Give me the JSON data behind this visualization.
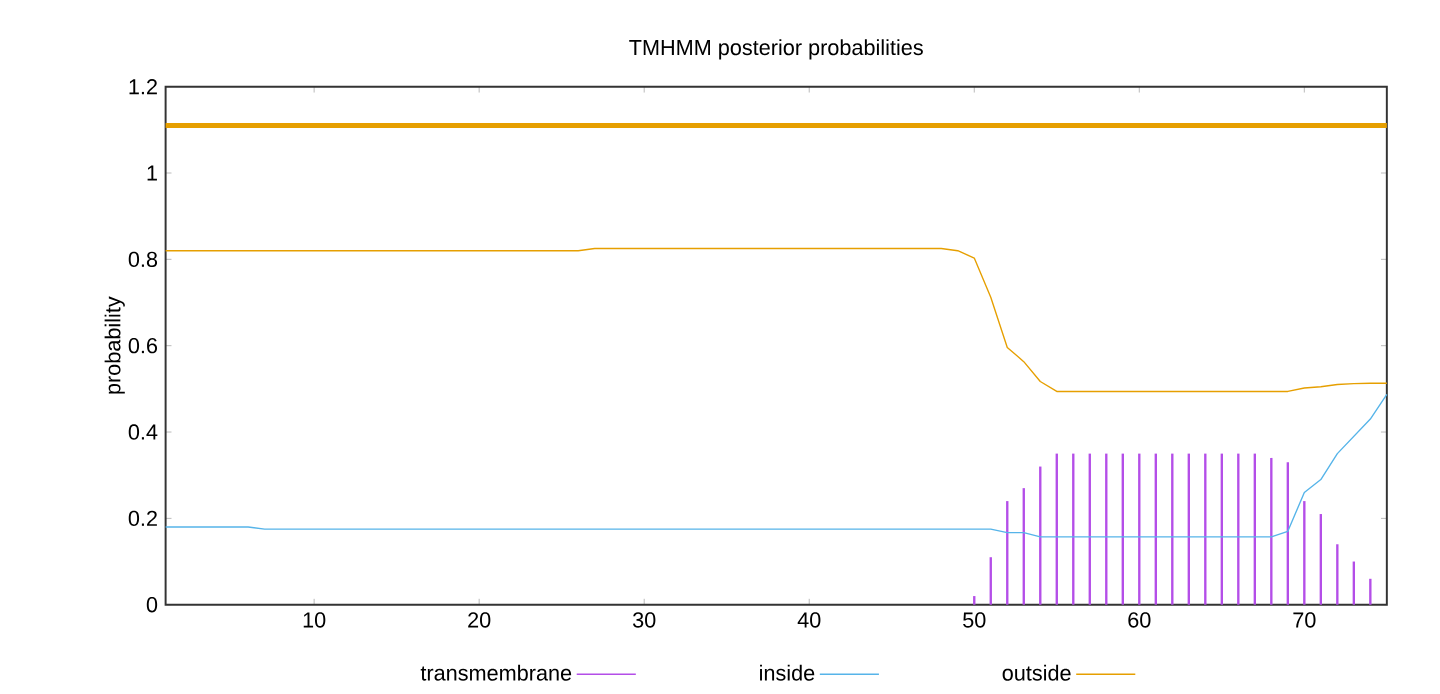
{
  "chart_data": {
    "type": "line",
    "title": "TMHMM posterior probabilities",
    "ylabel": "probability",
    "x": [
      1,
      2,
      3,
      4,
      5,
      6,
      7,
      8,
      9,
      10,
      11,
      12,
      13,
      14,
      15,
      16,
      17,
      18,
      19,
      20,
      21,
      22,
      23,
      24,
      25,
      26,
      27,
      28,
      29,
      30,
      31,
      32,
      33,
      34,
      35,
      36,
      37,
      38,
      39,
      40,
      41,
      42,
      43,
      44,
      45,
      46,
      47,
      48,
      49,
      50,
      51,
      52,
      53,
      54,
      55,
      56,
      57,
      58,
      59,
      60,
      61,
      62,
      63,
      64,
      65,
      66,
      67,
      68,
      69,
      70,
      71,
      72,
      73,
      74,
      75
    ],
    "series": [
      {
        "name": "transmembrane",
        "type": "bar",
        "color": "#b44ee8",
        "values": [
          0,
          0,
          0,
          0,
          0,
          0,
          0,
          0,
          0,
          0,
          0,
          0,
          0,
          0,
          0,
          0,
          0,
          0,
          0,
          0,
          0,
          0,
          0,
          0,
          0,
          0,
          0,
          0,
          0,
          0,
          0,
          0,
          0,
          0,
          0,
          0,
          0,
          0,
          0,
          0,
          0,
          0,
          0,
          0,
          0,
          0,
          0,
          0,
          0,
          0.02,
          0.11,
          0.24,
          0.27,
          0.32,
          0.35,
          0.35,
          0.35,
          0.35,
          0.35,
          0.35,
          0.35,
          0.35,
          0.35,
          0.35,
          0.35,
          0.35,
          0.35,
          0.34,
          0.33,
          0.24,
          0.21,
          0.14,
          0.1,
          0.06,
          0
        ]
      },
      {
        "name": "inside",
        "color": "#56b4e9",
        "values": [
          0.18,
          0.18,
          0.18,
          0.18,
          0.18,
          0.18,
          0.175,
          0.175,
          0.175,
          0.175,
          0.175,
          0.175,
          0.175,
          0.175,
          0.175,
          0.175,
          0.175,
          0.175,
          0.175,
          0.175,
          0.175,
          0.175,
          0.175,
          0.175,
          0.175,
          0.175,
          0.175,
          0.175,
          0.175,
          0.175,
          0.175,
          0.175,
          0.175,
          0.175,
          0.175,
          0.175,
          0.175,
          0.175,
          0.175,
          0.175,
          0.175,
          0.175,
          0.175,
          0.175,
          0.175,
          0.175,
          0.175,
          0.175,
          0.175,
          0.175,
          0.175,
          0.167,
          0.167,
          0.157,
          0.157,
          0.157,
          0.157,
          0.157,
          0.157,
          0.157,
          0.157,
          0.157,
          0.157,
          0.157,
          0.157,
          0.157,
          0.157,
          0.157,
          0.17,
          0.26,
          0.29,
          0.35,
          0.39,
          0.43,
          0.487
        ]
      },
      {
        "name": "outside",
        "color": "#e69f00",
        "values": [
          0.82,
          0.82,
          0.82,
          0.82,
          0.82,
          0.82,
          0.82,
          0.82,
          0.82,
          0.82,
          0.82,
          0.82,
          0.82,
          0.82,
          0.82,
          0.82,
          0.82,
          0.82,
          0.82,
          0.82,
          0.82,
          0.82,
          0.82,
          0.82,
          0.82,
          0.82,
          0.825,
          0.825,
          0.825,
          0.825,
          0.825,
          0.825,
          0.825,
          0.825,
          0.825,
          0.825,
          0.825,
          0.825,
          0.825,
          0.825,
          0.825,
          0.825,
          0.825,
          0.825,
          0.825,
          0.825,
          0.825,
          0.825,
          0.82,
          0.803,
          0.712,
          0.596,
          0.563,
          0.517,
          0.494,
          0.494,
          0.494,
          0.494,
          0.494,
          0.494,
          0.494,
          0.494,
          0.494,
          0.494,
          0.494,
          0.494,
          0.494,
          0.494,
          0.494,
          0.502,
          0.505,
          0.51,
          0.512,
          0.513,
          0.513
        ]
      }
    ],
    "ref_lines": [
      {
        "axis": "y",
        "value": 1.11,
        "color": "#e69f00"
      }
    ],
    "xlim": [
      1,
      75
    ],
    "ylim": [
      0,
      1.2
    ],
    "xticks": [
      10,
      20,
      30,
      40,
      50,
      60,
      70
    ],
    "yticks": [
      0,
      0.2,
      0.4,
      0.6,
      0.8,
      1,
      1.2
    ],
    "legend": "bottom",
    "grid": false,
    "marker": "none",
    "line_style": "solid"
  }
}
